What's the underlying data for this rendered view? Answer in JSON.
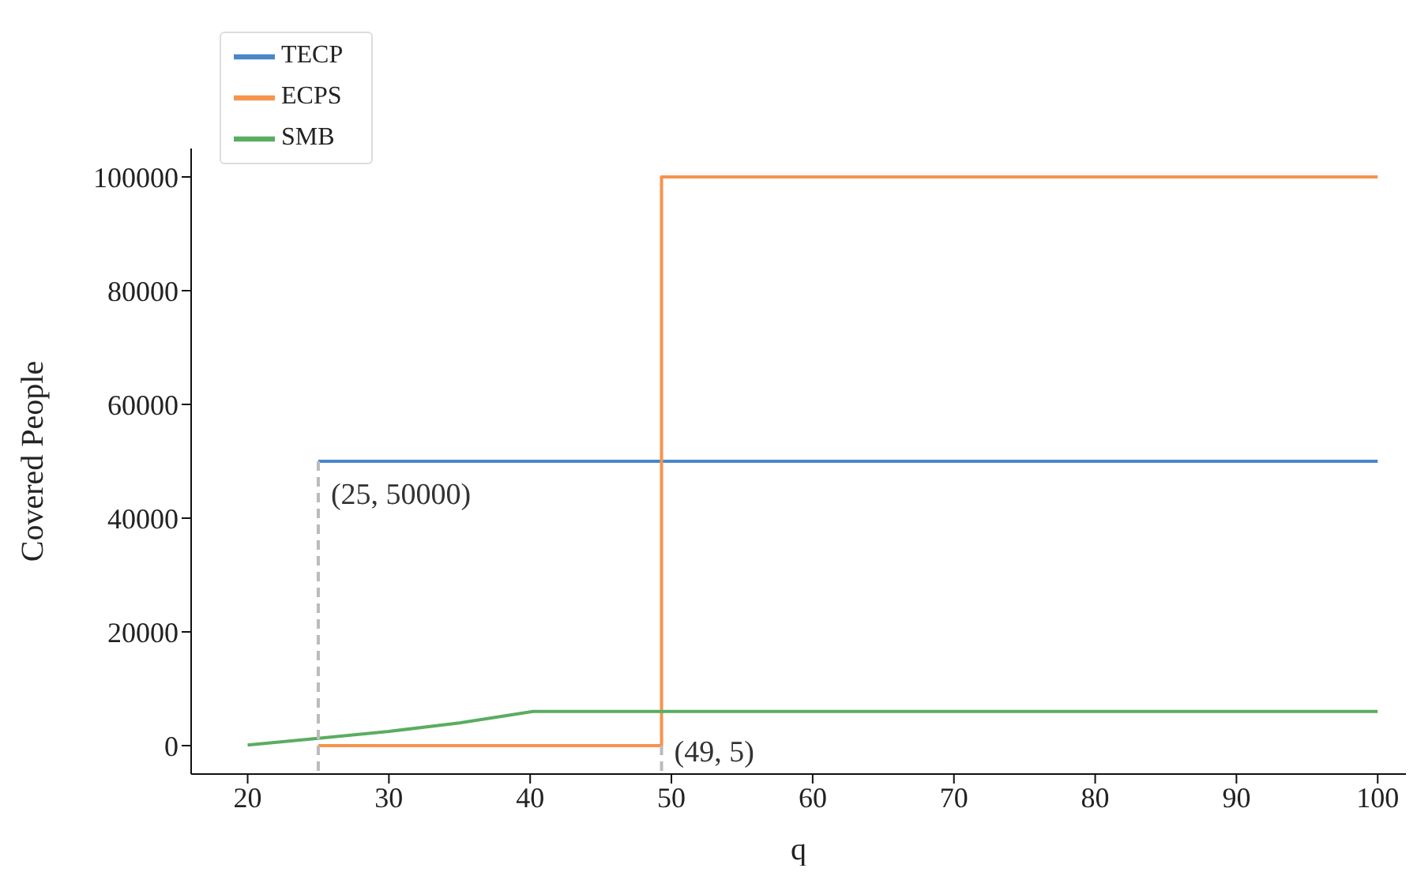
{
  "chart_data": {
    "type": "line",
    "xlabel": "q",
    "ylabel": "Covered People",
    "xlim": [
      16,
      102
    ],
    "ylim": [
      -5000,
      105000
    ],
    "xticks": [
      20,
      30,
      40,
      50,
      60,
      70,
      80,
      90,
      100
    ],
    "yticks": [
      0,
      20000,
      40000,
      60000,
      80000,
      100000
    ],
    "grid": false,
    "legend": "top left",
    "marker": "none",
    "series": [
      {
        "name": "TECP",
        "color": "#4a86c8",
        "x": [
          25,
          100
        ],
        "values": [
          50000,
          50000
        ]
      },
      {
        "name": "ECPS",
        "color": "#f7934c",
        "x": [
          25,
          49.3,
          49.3,
          100
        ],
        "values": [
          5,
          5,
          100000,
          100000
        ]
      },
      {
        "name": "SMB",
        "color": "#59ad61",
        "x": [
          20,
          25,
          30,
          35,
          40.2,
          100
        ],
        "values": [
          100,
          1300,
          2500,
          4000,
          6000,
          6000
        ]
      },
      {
        "type": "line",
        "color": "#bbbbbb",
        "line_style": "dashed",
        "x": [
          25,
          25
        ],
        "values": [
          50000,
          -5000
        ]
      },
      {
        "type": "line",
        "color": "#bbbbbb",
        "line_style": "dashed",
        "x": [
          49.3,
          49.3
        ],
        "values": [
          5,
          -5000
        ]
      }
    ],
    "annotations": [
      {
        "text": "(25, 50000)",
        "x": 25,
        "y": 50000
      },
      {
        "text": "(49, 5)",
        "x": 49.3,
        "y": 5
      }
    ]
  }
}
